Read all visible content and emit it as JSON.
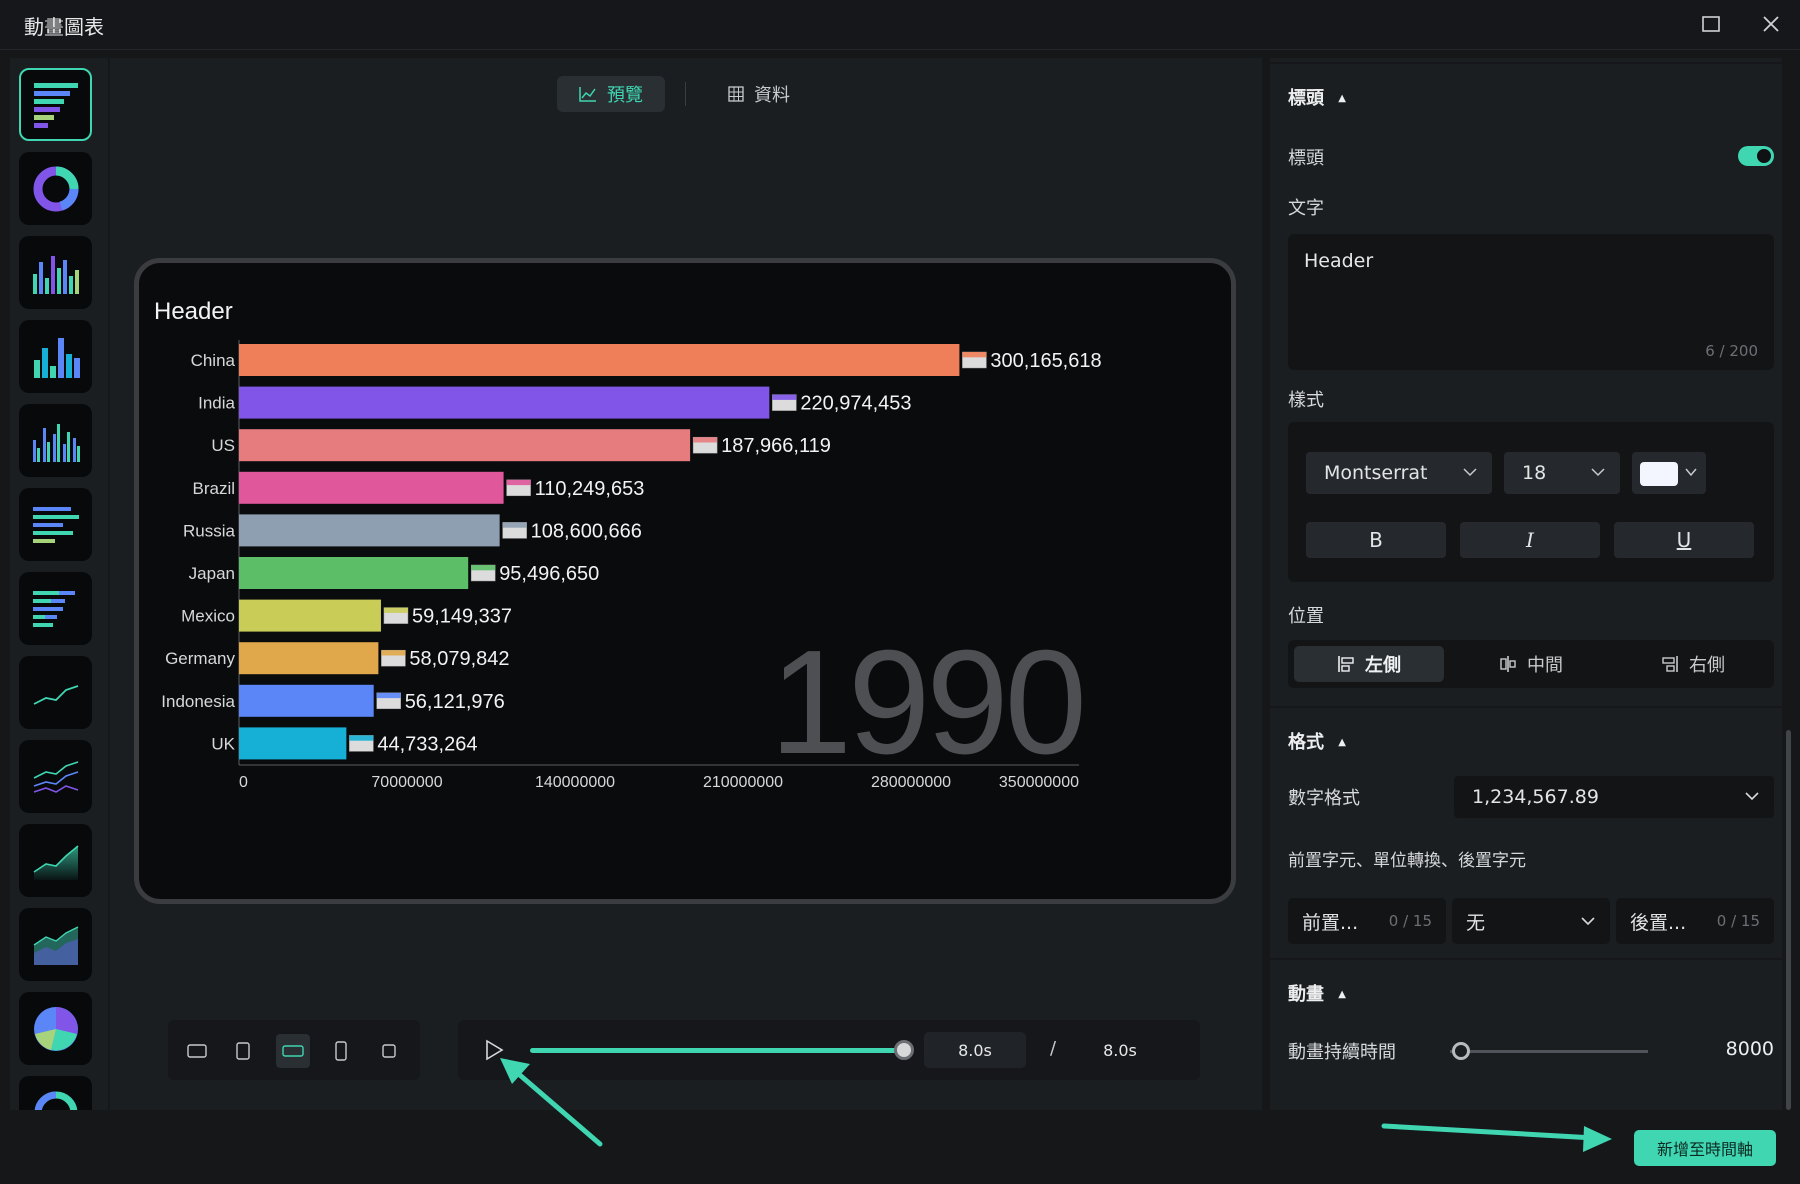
{
  "window": {
    "title": "動畫圖表"
  },
  "tabs": {
    "preview": "預覽",
    "data": "資料"
  },
  "chart_data": {
    "type": "bar",
    "title": "Header",
    "categories": [
      "China",
      "India",
      "US",
      "Brazil",
      "Russia",
      "Japan",
      "Mexico",
      "Germany",
      "Indonesia",
      "UK"
    ],
    "values": [
      300165618,
      220974453,
      187966119,
      110249653,
      108600666,
      95496650,
      59149337,
      58079842,
      56121976,
      44733264
    ],
    "value_labels": [
      "300,165,618",
      "220,974,453",
      "187,966,119",
      "110,249,653",
      "108,600,666",
      "95,496,650",
      "59,149,337",
      "58,079,842",
      "56,121,976",
      "44,733,264"
    ],
    "colors": [
      "#ef7f58",
      "#8055e8",
      "#e77c7f",
      "#e0579b",
      "#8e9fb1",
      "#5cbf67",
      "#c9cd58",
      "#e0a84a",
      "#5b86f7",
      "#16b0d6"
    ],
    "xticks": [
      "0",
      "70000000",
      "140000000",
      "210000000",
      "280000000",
      "350000000"
    ],
    "xlim": [
      0,
      350000000
    ],
    "year": "1990",
    "orientation": "horizontal"
  },
  "playback": {
    "current": "8.0s",
    "separator": "/",
    "total": "8.0s",
    "progress_fraction": 1.0
  },
  "panel": {
    "header_section": "標頭",
    "header_toggle_label": "標頭",
    "text_label": "文字",
    "text_value": "Header",
    "text_count": "6 / 200",
    "style_label": "樣式",
    "font": "Montserrat",
    "size": "18",
    "bold": "B",
    "italic": "I",
    "underline": "U",
    "position_label": "位置",
    "pos_left": "左側",
    "pos_center": "中間",
    "pos_right": "右側",
    "format_section": "格式",
    "number_format_label": "數字格式",
    "number_format_value": "1,234,567.89",
    "prefix_row_label": "前置字元、單位轉換、後置字元",
    "prefix_placeholder": "前置...",
    "prefix_count": "0 / 15",
    "unit_value": "无",
    "suffix_placeholder": "後置...",
    "suffix_count": "0 / 15",
    "animation_section": "動畫",
    "duration_label": "動畫持續時間",
    "duration_value": "8000"
  },
  "footer": {
    "add_button": "新增至時間軸"
  },
  "colors": {
    "accent": "#3fd6b1"
  }
}
